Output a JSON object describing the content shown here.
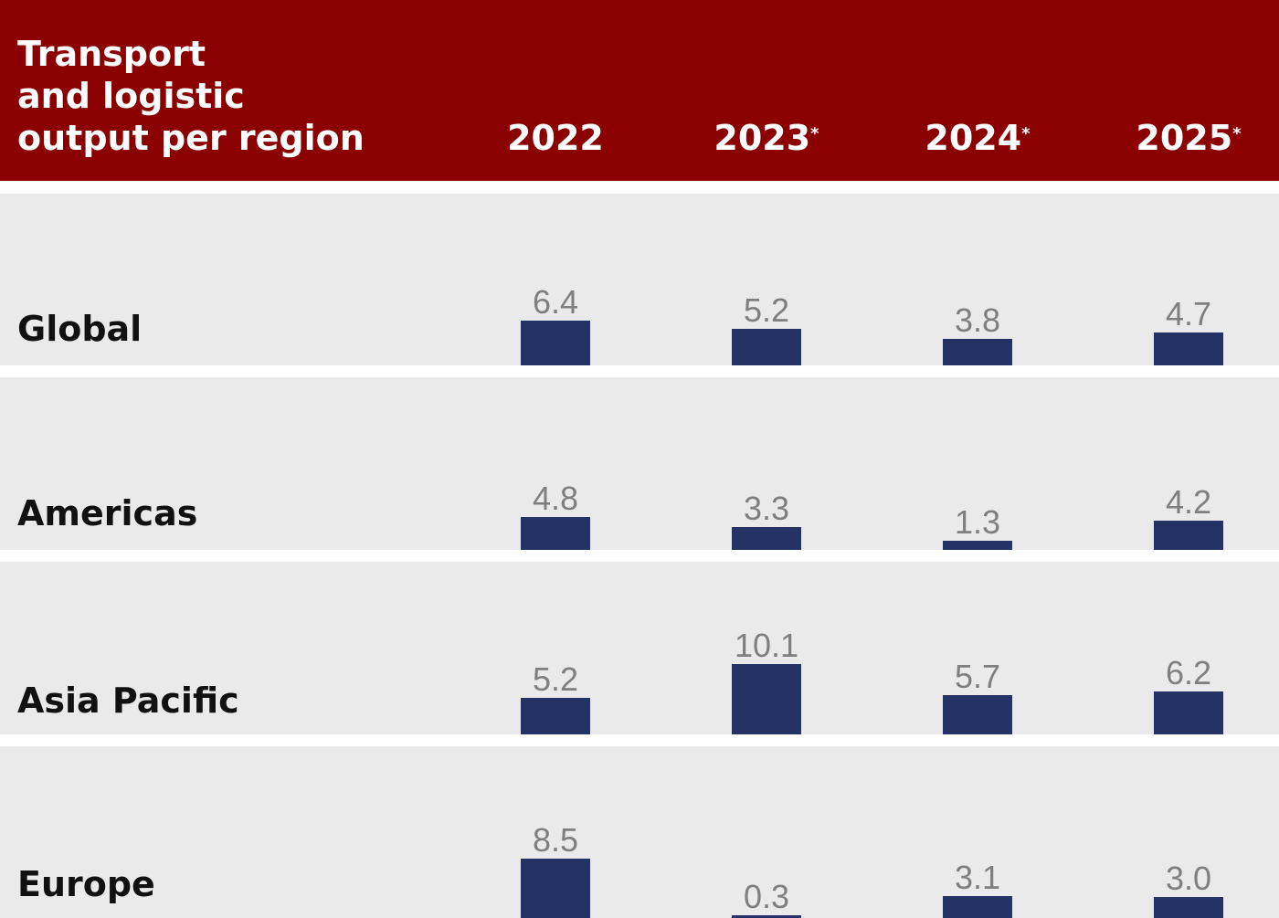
{
  "colors": {
    "header_bg": "#8b0000",
    "row_bg": "#eaeaea",
    "bar": "#243265",
    "value_text": "#7f7f7f"
  },
  "chart_data": {
    "type": "bar",
    "title": "Transport and logistic output per region",
    "title_lines": [
      "Transport",
      "and logistic",
      "output per region"
    ],
    "categories": [
      "2022",
      "2023",
      "2024",
      "2025"
    ],
    "forecast_mark": "*",
    "forecast_flags": [
      false,
      true,
      true,
      true
    ],
    "series": [
      {
        "name": "Global",
        "values": [
          6.4,
          5.2,
          3.8,
          4.7
        ]
      },
      {
        "name": "Americas",
        "values": [
          4.8,
          3.3,
          1.3,
          4.2
        ]
      },
      {
        "name": "Asia Pacific",
        "values": [
          5.2,
          10.1,
          5.7,
          6.2
        ]
      },
      {
        "name": "Europe",
        "values": [
          8.5,
          0.3,
          3.1,
          3.0
        ]
      }
    ],
    "ylim": [
      0,
      12
    ]
  }
}
